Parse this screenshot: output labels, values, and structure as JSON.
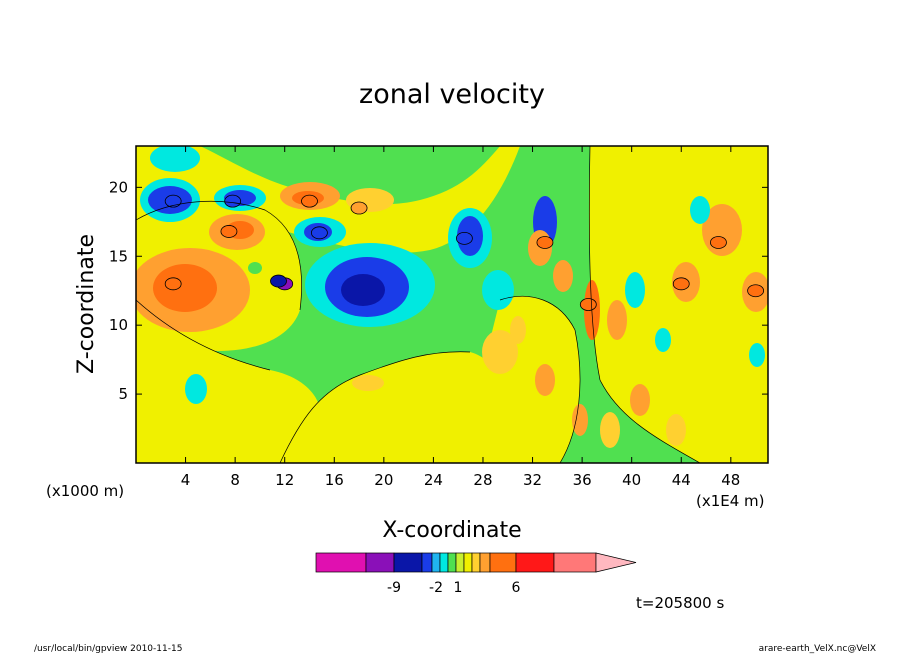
{
  "chart_data": {
    "type": "heatmap",
    "title": "zonal velocity",
    "xlabel": "X-coordinate",
    "ylabel": "Z-coordinate",
    "x_units": "(x1E4 m)",
    "z_units": "(x1000 m)",
    "xlim": [
      0,
      51
    ],
    "ylim": [
      0,
      23
    ],
    "x_ticks": [
      "4",
      "8",
      "12",
      "16",
      "20",
      "24",
      "28",
      "32",
      "36",
      "40",
      "44",
      "48"
    ],
    "y_ticks": [
      "5",
      "10",
      "15",
      "20"
    ],
    "time_label": "t=205800 s",
    "colorbar": {
      "colors": [
        "#e010b0",
        "#8a10b8",
        "#0a16a8",
        "#1a3ce8",
        "#20b4f0",
        "#00e8e0",
        "#50e050",
        "#c8f030",
        "#f0f000",
        "#ffd030",
        "#ffa030",
        "#ff7010",
        "#ff1818",
        "#ff7878",
        "#ffb8c0"
      ],
      "tick_labels": [
        "-9",
        "-2",
        "1",
        "6"
      ]
    },
    "features": [
      {
        "x": 12.0,
        "z": 13.0,
        "value": -11
      },
      {
        "x": 11.5,
        "z": 13.2,
        "value": -8
      },
      {
        "x": 3.0,
        "z": 19.0,
        "value": -7
      },
      {
        "x": 7.8,
        "z": 19.0,
        "value": -7
      },
      {
        "x": 26.5,
        "z": 16.3,
        "value": -6
      },
      {
        "x": 14.8,
        "z": 16.7,
        "value": -5
      },
      {
        "x": 3.0,
        "z": 13.0,
        "value": 5
      },
      {
        "x": 7.5,
        "z": 16.8,
        "value": 5
      },
      {
        "x": 14.0,
        "z": 19.0,
        "value": 5
      },
      {
        "x": 18.0,
        "z": 18.5,
        "value": 4
      },
      {
        "x": 33.0,
        "z": 16.0,
        "value": 6
      },
      {
        "x": 36.5,
        "z": 11.5,
        "value": 6
      },
      {
        "x": 44.0,
        "z": 13.0,
        "value": 5
      },
      {
        "x": 47.0,
        "z": 16.0,
        "value": 5
      },
      {
        "x": 50.0,
        "z": 12.5,
        "value": 5
      }
    ]
  },
  "footer": {
    "left": "/usr/local/bin/gpview  2010-11-15",
    "right": "arare-earth_VelX.nc@VelX"
  }
}
